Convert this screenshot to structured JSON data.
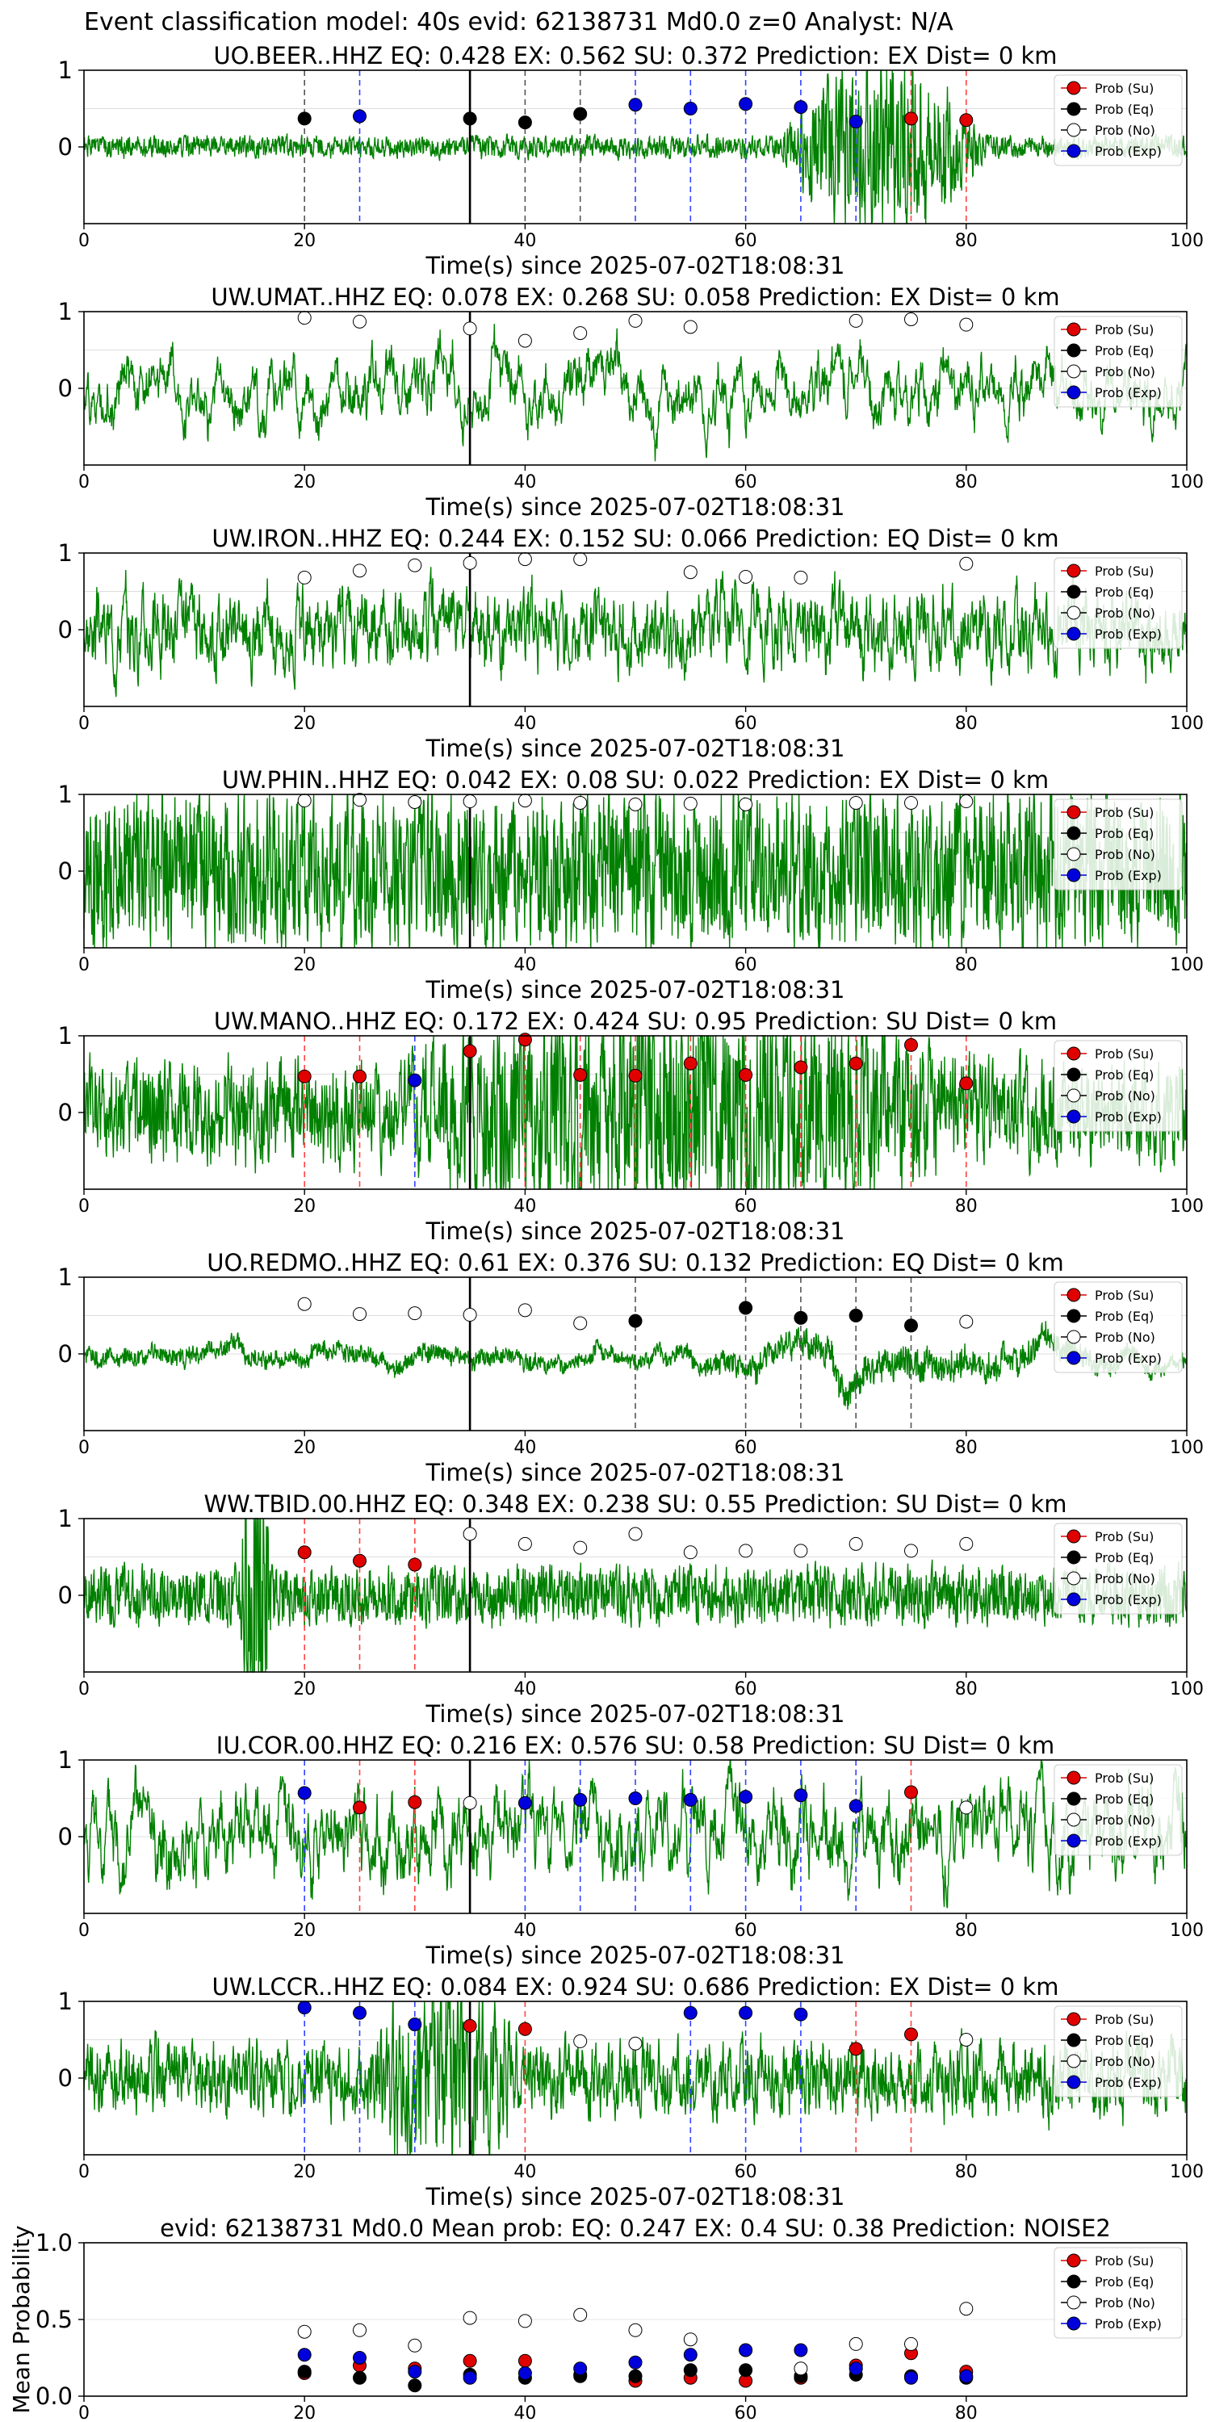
{
  "figure_title": "Event classification model: 40s evid: 62138731 Md0.0 z=0 Analyst: N/A",
  "xlabel": "Time(s) since 2025-07-02T18:08:31",
  "legend": [
    "Prob (Su)",
    "Prob (Eq)",
    "Prob (No)",
    "Prob (Exp)"
  ],
  "colors": {
    "su": "#e00000",
    "eq": "#000000",
    "no": "#ffffff",
    "exp": "#0000dd",
    "waveform": "#008000",
    "eq_line": "#555555"
  },
  "chart_data": [
    {
      "type": "line",
      "title": "UO.BEER..HHZ   EQ: 0.428  EX: 0.562  SU: 0.372   Prediction: EX    Dist= 0 km",
      "xlim": [
        0,
        100
      ],
      "ylim": [
        -1,
        1
      ],
      "xticks": [
        "0",
        "20",
        "40",
        "60",
        "80",
        "100"
      ],
      "yticks": [
        "1",
        "0"
      ],
      "event_line": 35,
      "points": [
        {
          "x": 20,
          "y": 0.37,
          "cls": "eq"
        },
        {
          "x": 25,
          "y": 0.4,
          "cls": "exp"
        },
        {
          "x": 35,
          "y": 0.37,
          "cls": "eq"
        },
        {
          "x": 40,
          "y": 0.32,
          "cls": "eq"
        },
        {
          "x": 45,
          "y": 0.43,
          "cls": "eq"
        },
        {
          "x": 50,
          "y": 0.55,
          "cls": "exp"
        },
        {
          "x": 55,
          "y": 0.5,
          "cls": "exp"
        },
        {
          "x": 60,
          "y": 0.56,
          "cls": "exp"
        },
        {
          "x": 65,
          "y": 0.52,
          "cls": "exp"
        },
        {
          "x": 70,
          "y": 0.33,
          "cls": "exp"
        },
        {
          "x": 75,
          "y": 0.37,
          "cls": "su"
        },
        {
          "x": 80,
          "y": 0.35,
          "cls": "su"
        }
      ],
      "wave": {
        "seed": 1,
        "amp": 0.06,
        "smooth": 0.35,
        "bursts": [
          [
            63,
            82,
            0.45
          ]
        ]
      }
    },
    {
      "type": "line",
      "title": "UW.UMAT..HHZ   EQ: 0.078  EX: 0.268  SU: 0.058   Prediction: EX    Dist= 0 km",
      "xlim": [
        0,
        100
      ],
      "ylim": [
        -1,
        1
      ],
      "xticks": [
        "0",
        "20",
        "40",
        "60",
        "80",
        "100"
      ],
      "yticks": [
        "1",
        "0"
      ],
      "event_line": 35,
      "points": [
        {
          "x": 20,
          "y": 0.92,
          "cls": "no"
        },
        {
          "x": 25,
          "y": 0.87,
          "cls": "no"
        },
        {
          "x": 35,
          "y": 0.78,
          "cls": "no"
        },
        {
          "x": 40,
          "y": 0.62,
          "cls": "no"
        },
        {
          "x": 45,
          "y": 0.72,
          "cls": "no"
        },
        {
          "x": 50,
          "y": 0.88,
          "cls": "no"
        },
        {
          "x": 55,
          "y": 0.8,
          "cls": "no"
        },
        {
          "x": 70,
          "y": 0.88,
          "cls": "no"
        },
        {
          "x": 75,
          "y": 0.9,
          "cls": "no"
        },
        {
          "x": 80,
          "y": 0.83,
          "cls": "no"
        }
      ],
      "wave": {
        "seed": 2,
        "amp": 0.45,
        "smooth": 0.92,
        "bursts": []
      }
    },
    {
      "type": "line",
      "title": "UW.IRON..HHZ   EQ: 0.244  EX: 0.152  SU: 0.066   Prediction: EQ    Dist= 0 km",
      "xlim": [
        0,
        100
      ],
      "ylim": [
        -1,
        1
      ],
      "xticks": [
        "0",
        "20",
        "40",
        "60",
        "80",
        "100"
      ],
      "yticks": [
        "1",
        "0"
      ],
      "event_line": 35,
      "points": [
        {
          "x": 20,
          "y": 0.68,
          "cls": "no"
        },
        {
          "x": 25,
          "y": 0.77,
          "cls": "no"
        },
        {
          "x": 30,
          "y": 0.84,
          "cls": "no"
        },
        {
          "x": 35,
          "y": 0.87,
          "cls": "no"
        },
        {
          "x": 40,
          "y": 0.92,
          "cls": "no"
        },
        {
          "x": 45,
          "y": 0.92,
          "cls": "no"
        },
        {
          "x": 55,
          "y": 0.75,
          "cls": "no"
        },
        {
          "x": 60,
          "y": 0.69,
          "cls": "no"
        },
        {
          "x": 65,
          "y": 0.68,
          "cls": "no"
        },
        {
          "x": 80,
          "y": 0.86,
          "cls": "no"
        }
      ],
      "wave": {
        "seed": 3,
        "amp": 0.35,
        "smooth": 0.7,
        "bursts": []
      }
    },
    {
      "type": "line",
      "title": "UW.PHIN..HHZ   EQ: 0.042  EX: 0.08  SU: 0.022   Prediction: EX    Dist= 0 km",
      "xlim": [
        0,
        100
      ],
      "ylim": [
        -1,
        1
      ],
      "xticks": [
        "0",
        "20",
        "40",
        "60",
        "80",
        "100"
      ],
      "yticks": [
        "1",
        "0"
      ],
      "event_line": 35,
      "points": [
        {
          "x": 20,
          "y": 0.92,
          "cls": "no"
        },
        {
          "x": 25,
          "y": 0.93,
          "cls": "no"
        },
        {
          "x": 30,
          "y": 0.9,
          "cls": "no"
        },
        {
          "x": 35,
          "y": 0.91,
          "cls": "no"
        },
        {
          "x": 40,
          "y": 0.92,
          "cls": "no"
        },
        {
          "x": 45,
          "y": 0.89,
          "cls": "no"
        },
        {
          "x": 50,
          "y": 0.87,
          "cls": "no"
        },
        {
          "x": 55,
          "y": 0.88,
          "cls": "no"
        },
        {
          "x": 60,
          "y": 0.87,
          "cls": "no"
        },
        {
          "x": 70,
          "y": 0.89,
          "cls": "no"
        },
        {
          "x": 75,
          "y": 0.89,
          "cls": "no"
        },
        {
          "x": 80,
          "y": 0.91,
          "cls": "no"
        }
      ],
      "wave": {
        "seed": 4,
        "amp": 0.4,
        "smooth": 0.3,
        "bursts": []
      }
    },
    {
      "type": "line",
      "title": "UW.MANO..HHZ   EQ: 0.172  EX: 0.424  SU: 0.95   Prediction: SU    Dist= 0 km",
      "xlim": [
        0,
        100
      ],
      "ylim": [
        -1,
        1
      ],
      "xticks": [
        "0",
        "20",
        "40",
        "60",
        "80",
        "100"
      ],
      "yticks": [
        "1",
        "0"
      ],
      "event_line": 35,
      "points": [
        {
          "x": 20,
          "y": 0.47,
          "cls": "su"
        },
        {
          "x": 25,
          "y": 0.47,
          "cls": "su"
        },
        {
          "x": 30,
          "y": 0.42,
          "cls": "exp"
        },
        {
          "x": 35,
          "y": 0.8,
          "cls": "su"
        },
        {
          "x": 40,
          "y": 0.95,
          "cls": "su"
        },
        {
          "x": 45,
          "y": 0.49,
          "cls": "su"
        },
        {
          "x": 50,
          "y": 0.48,
          "cls": "su"
        },
        {
          "x": 55,
          "y": 0.64,
          "cls": "su"
        },
        {
          "x": 60,
          "y": 0.49,
          "cls": "su"
        },
        {
          "x": 65,
          "y": 0.59,
          "cls": "su"
        },
        {
          "x": 70,
          "y": 0.64,
          "cls": "su"
        },
        {
          "x": 75,
          "y": 0.88,
          "cls": "su"
        },
        {
          "x": 80,
          "y": 0.38,
          "cls": "su"
        }
      ],
      "wave": {
        "seed": 5,
        "amp": 0.3,
        "smooth": 0.45,
        "bursts": [
          [
            28,
            80,
            0.5
          ]
        ]
      }
    },
    {
      "type": "line",
      "title": "UO.REDMO..HHZ   EQ: 0.61  EX: 0.376  SU: 0.132   Prediction: EQ    Dist= 0 km",
      "xlim": [
        0,
        100
      ],
      "ylim": [
        -1,
        1
      ],
      "xticks": [
        "0",
        "20",
        "40",
        "60",
        "80",
        "100"
      ],
      "yticks": [
        "1",
        "0"
      ],
      "event_line": 35,
      "points": [
        {
          "x": 20,
          "y": 0.65,
          "cls": "no"
        },
        {
          "x": 25,
          "y": 0.52,
          "cls": "no"
        },
        {
          "x": 30,
          "y": 0.53,
          "cls": "no"
        },
        {
          "x": 35,
          "y": 0.51,
          "cls": "no"
        },
        {
          "x": 40,
          "y": 0.57,
          "cls": "no"
        },
        {
          "x": 45,
          "y": 0.4,
          "cls": "no"
        },
        {
          "x": 50,
          "y": 0.43,
          "cls": "eq"
        },
        {
          "x": 60,
          "y": 0.6,
          "cls": "eq"
        },
        {
          "x": 65,
          "y": 0.47,
          "cls": "eq"
        },
        {
          "x": 70,
          "y": 0.5,
          "cls": "eq"
        },
        {
          "x": 75,
          "y": 0.37,
          "cls": "eq"
        },
        {
          "x": 80,
          "y": 0.42,
          "cls": "no"
        }
      ],
      "wave": {
        "seed": 6,
        "amp": 0.4,
        "smooth": 0.985,
        "bursts": [
          [
            55,
            95,
            0.35
          ]
        ]
      }
    },
    {
      "type": "line",
      "title": "WW.TBID.00.HHZ   EQ: 0.348  EX: 0.238  SU: 0.55   Prediction: SU    Dist= 0 km",
      "xlim": [
        0,
        100
      ],
      "ylim": [
        -1,
        1
      ],
      "xticks": [
        "0",
        "20",
        "40",
        "60",
        "80",
        "100"
      ],
      "yticks": [
        "1",
        "0"
      ],
      "event_line": 35,
      "points": [
        {
          "x": 20,
          "y": 0.56,
          "cls": "su"
        },
        {
          "x": 25,
          "y": 0.45,
          "cls": "su"
        },
        {
          "x": 30,
          "y": 0.4,
          "cls": "su"
        },
        {
          "x": 35,
          "y": 0.8,
          "cls": "no"
        },
        {
          "x": 40,
          "y": 0.67,
          "cls": "no"
        },
        {
          "x": 45,
          "y": 0.62,
          "cls": "no"
        },
        {
          "x": 50,
          "y": 0.8,
          "cls": "no"
        },
        {
          "x": 55,
          "y": 0.56,
          "cls": "no"
        },
        {
          "x": 60,
          "y": 0.58,
          "cls": "no"
        },
        {
          "x": 65,
          "y": 0.58,
          "cls": "no"
        },
        {
          "x": 70,
          "y": 0.67,
          "cls": "no"
        },
        {
          "x": 75,
          "y": 0.58,
          "cls": "no"
        },
        {
          "x": 80,
          "y": 0.67,
          "cls": "no"
        }
      ],
      "wave": {
        "seed": 7,
        "amp": 0.15,
        "smooth": 0.3,
        "bursts": [
          [
            14,
            17,
            1.0
          ]
        ]
      }
    },
    {
      "type": "line",
      "title": "IU.COR.00.HHZ   EQ: 0.216  EX: 0.576  SU: 0.58   Prediction: SU    Dist= 0 km",
      "xlim": [
        0,
        100
      ],
      "ylim": [
        -1,
        1
      ],
      "xticks": [
        "0",
        "20",
        "40",
        "60",
        "80",
        "100"
      ],
      "yticks": [
        "1",
        "0"
      ],
      "event_line": 35,
      "points": [
        {
          "x": 20,
          "y": 0.57,
          "cls": "exp"
        },
        {
          "x": 25,
          "y": 0.38,
          "cls": "su"
        },
        {
          "x": 30,
          "y": 0.45,
          "cls": "su"
        },
        {
          "x": 35,
          "y": 0.44,
          "cls": "no"
        },
        {
          "x": 40,
          "y": 0.44,
          "cls": "exp"
        },
        {
          "x": 45,
          "y": 0.48,
          "cls": "exp"
        },
        {
          "x": 50,
          "y": 0.5,
          "cls": "exp"
        },
        {
          "x": 55,
          "y": 0.48,
          "cls": "exp"
        },
        {
          "x": 60,
          "y": 0.52,
          "cls": "exp"
        },
        {
          "x": 65,
          "y": 0.54,
          "cls": "exp"
        },
        {
          "x": 70,
          "y": 0.4,
          "cls": "exp"
        },
        {
          "x": 75,
          "y": 0.58,
          "cls": "su"
        },
        {
          "x": 80,
          "y": 0.38,
          "cls": "no"
        }
      ],
      "wave": {
        "seed": 8,
        "amp": 0.4,
        "smooth": 0.85,
        "bursts": []
      }
    },
    {
      "type": "line",
      "title": "UW.LCCR..HHZ   EQ: 0.084  EX: 0.924  SU: 0.686   Prediction: EX    Dist= 0 km",
      "xlim": [
        0,
        100
      ],
      "ylim": [
        -1,
        1
      ],
      "xticks": [
        "0",
        "20",
        "40",
        "60",
        "80",
        "100"
      ],
      "yticks": [
        "1",
        "0"
      ],
      "event_line": 35,
      "points": [
        {
          "x": 20,
          "y": 0.92,
          "cls": "exp"
        },
        {
          "x": 25,
          "y": 0.85,
          "cls": "exp"
        },
        {
          "x": 30,
          "y": 0.7,
          "cls": "exp"
        },
        {
          "x": 35,
          "y": 0.68,
          "cls": "su"
        },
        {
          "x": 40,
          "y": 0.64,
          "cls": "su"
        },
        {
          "x": 45,
          "y": 0.48,
          "cls": "no"
        },
        {
          "x": 50,
          "y": 0.45,
          "cls": "no"
        },
        {
          "x": 55,
          "y": 0.85,
          "cls": "exp"
        },
        {
          "x": 60,
          "y": 0.85,
          "cls": "exp"
        },
        {
          "x": 65,
          "y": 0.83,
          "cls": "exp"
        },
        {
          "x": 70,
          "y": 0.38,
          "cls": "su"
        },
        {
          "x": 75,
          "y": 0.57,
          "cls": "su"
        },
        {
          "x": 80,
          "y": 0.5,
          "cls": "no"
        }
      ],
      "wave": {
        "seed": 9,
        "amp": 0.25,
        "smooth": 0.55,
        "bursts": [
          [
            25,
            40,
            0.45
          ]
        ]
      }
    },
    {
      "type": "scatter",
      "title": "evid: 62138731  Md0.0   Mean prob:    EQ: 0.247  EX: 0.4  SU: 0.38   Prediction: NOISE2",
      "ylabel": "Mean Probability",
      "xlim": [
        0,
        100
      ],
      "ylim": [
        0,
        1
      ],
      "xticks": [
        "0",
        "20",
        "40",
        "60",
        "80"
      ],
      "yticks": [
        "0.0",
        "0.5",
        "1.0"
      ],
      "x": [
        20,
        25,
        30,
        35,
        40,
        45,
        50,
        55,
        60,
        65,
        70,
        75,
        80
      ],
      "series": [
        {
          "name": "Prob (Su)",
          "cls": "su",
          "values": [
            0.15,
            0.2,
            0.18,
            0.23,
            0.23,
            0.14,
            0.1,
            0.12,
            0.1,
            0.12,
            0.2,
            0.28,
            0.16
          ]
        },
        {
          "name": "Prob (Eq)",
          "cls": "eq",
          "values": [
            0.16,
            0.12,
            0.07,
            0.14,
            0.12,
            0.13,
            0.13,
            0.17,
            0.17,
            0.13,
            0.14,
            0.13,
            0.12
          ]
        },
        {
          "name": "Prob (No)",
          "cls": "no",
          "values": [
            0.42,
            0.43,
            0.33,
            0.51,
            0.49,
            0.53,
            0.43,
            0.37,
            0.3,
            0.18,
            0.34,
            0.34,
            0.57
          ]
        },
        {
          "name": "Prob (Exp)",
          "cls": "exp",
          "values": [
            0.27,
            0.25,
            0.16,
            0.12,
            0.15,
            0.18,
            0.22,
            0.27,
            0.3,
            0.3,
            0.18,
            0.12,
            0.13
          ]
        }
      ]
    }
  ]
}
